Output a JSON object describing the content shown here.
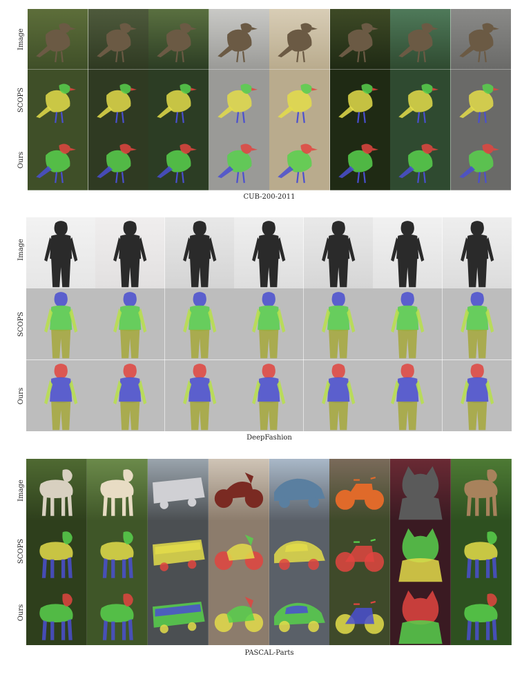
{
  "row_labels": {
    "image": "Image",
    "scops": "SCOPS",
    "ours": "Ours"
  },
  "sections": [
    {
      "caption": "CUB-200-2011",
      "images": [
        "bird",
        "bird",
        "bird",
        "bird",
        "bird",
        "bird",
        "bird",
        "bird"
      ]
    },
    {
      "caption": "DeepFashion",
      "images": [
        "person",
        "person",
        "person",
        "person",
        "person",
        "person",
        "person"
      ]
    },
    {
      "caption": "PASCAL-Parts",
      "images": [
        "horse",
        "sheep",
        "bus",
        "motorbike",
        "car",
        "bicycle",
        "cat",
        "dog"
      ]
    }
  ],
  "colors": {
    "red": "#e0453f",
    "yellow": "#e3dc4a",
    "green": "#58d04c",
    "blue": "#4a4fd0",
    "lime": "#b8e04a",
    "olive": "#a6a83c"
  }
}
